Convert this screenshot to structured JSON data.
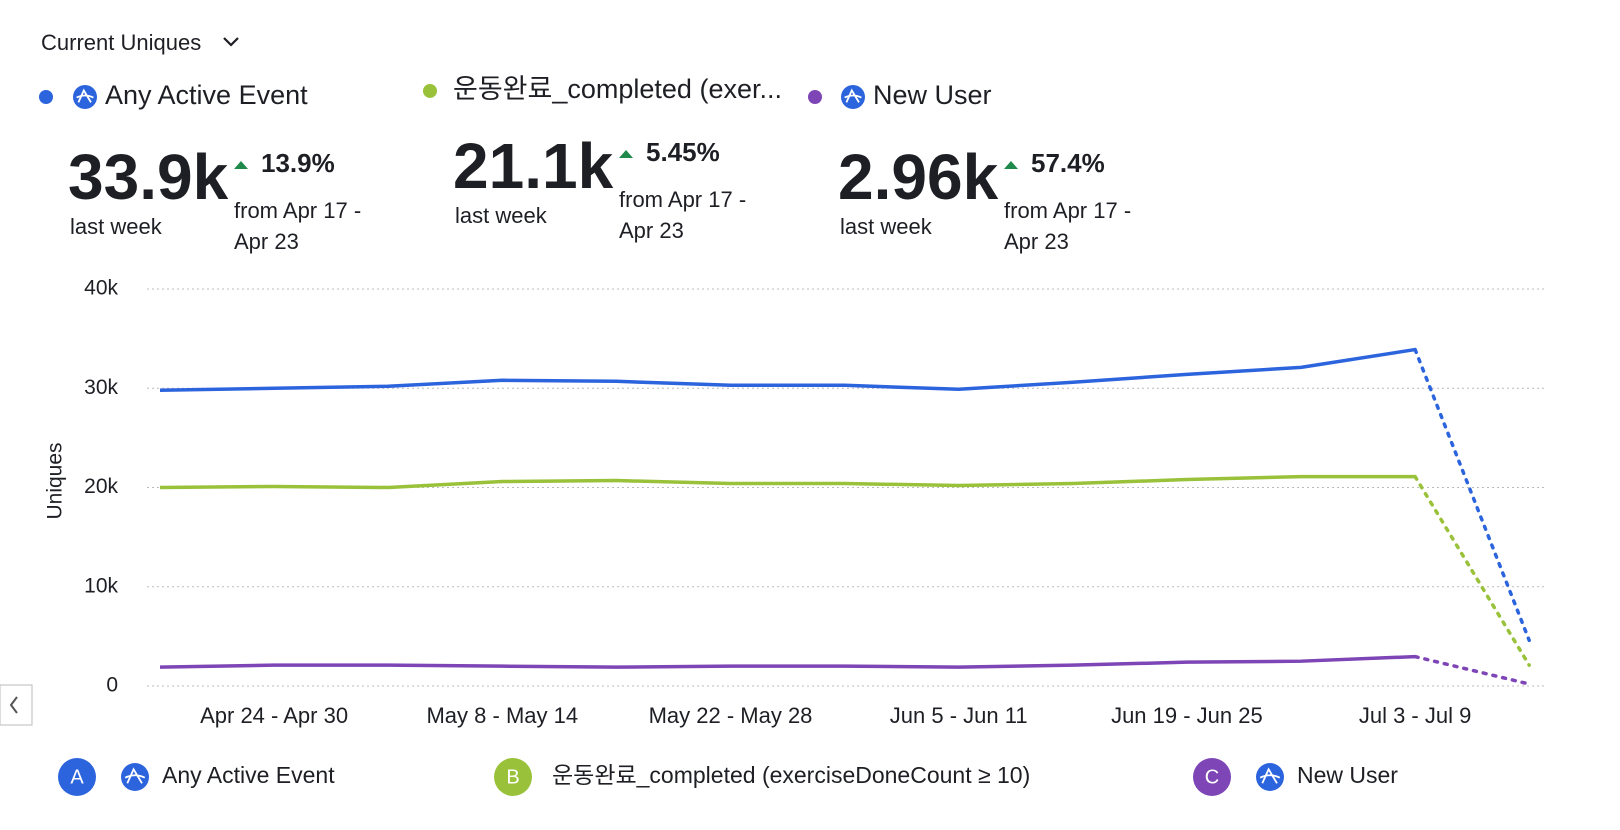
{
  "header": {
    "title": "Current Uniques"
  },
  "summary": [
    {
      "label": "Any Active Event",
      "value": 33900,
      "value_label": "33.9k",
      "change": "13.9%",
      "period": "last week",
      "compare": [
        "from Apr 17 -",
        "Apr 23"
      ]
    },
    {
      "label": "운동완료_completed (exer...",
      "value": 21100,
      "value_label": "21.1k",
      "change": "5.45%",
      "period": "last week",
      "compare": [
        "from Apr 17 -",
        "Apr 23"
      ]
    },
    {
      "label": "New User",
      "value": 2960,
      "value_label": "2.96k",
      "change": "57.4%",
      "period": "last week",
      "compare": [
        "from Apr 17 -",
        "Apr 23"
      ]
    }
  ],
  "chart_data": {
    "type": "line",
    "y_label": "Uniques",
    "categories": [
      null,
      "Apr 24 - Apr 30",
      null,
      "May 8 - May 14",
      null,
      "May 22 - May 28",
      null,
      "Jun 5 - Jun 11",
      null,
      "Jun 19 - Jun 25",
      null,
      "Jul 3 - Jul 9",
      null
    ],
    "series": [
      {
        "name": "Any Active Event",
        "letter": "A",
        "color": "#2c64dd",
        "values": [
          29800,
          30000,
          30200,
          30800,
          30700,
          30300,
          30300,
          29900,
          30600,
          31400,
          32100,
          33900,
          4600
        ]
      },
      {
        "name": "운동완료_completed (exerciseDoneCount ≥ 10)",
        "letter": "B",
        "color": "#99c23a",
        "values": [
          20000,
          20100,
          20000,
          20600,
          20700,
          20400,
          20400,
          20200,
          20400,
          20800,
          21100,
          21100,
          2100
        ]
      },
      {
        "name": "New User",
        "letter": "C",
        "color": "#7d45b5",
        "values": [
          1900,
          2100,
          2100,
          2000,
          1900,
          2000,
          2000,
          1900,
          2100,
          2400,
          2500,
          2960,
          200
        ]
      }
    ],
    "ylim": [
      0,
      40000
    ],
    "yticks": [
      0,
      {
        "value": 10000,
        "label": "10k"
      },
      {
        "value": 20000,
        "label": "20k"
      },
      {
        "value": 30000,
        "label": "30k"
      },
      {
        "value": 40000,
        "label": "40k"
      }
    ],
    "grid": true
  }
}
